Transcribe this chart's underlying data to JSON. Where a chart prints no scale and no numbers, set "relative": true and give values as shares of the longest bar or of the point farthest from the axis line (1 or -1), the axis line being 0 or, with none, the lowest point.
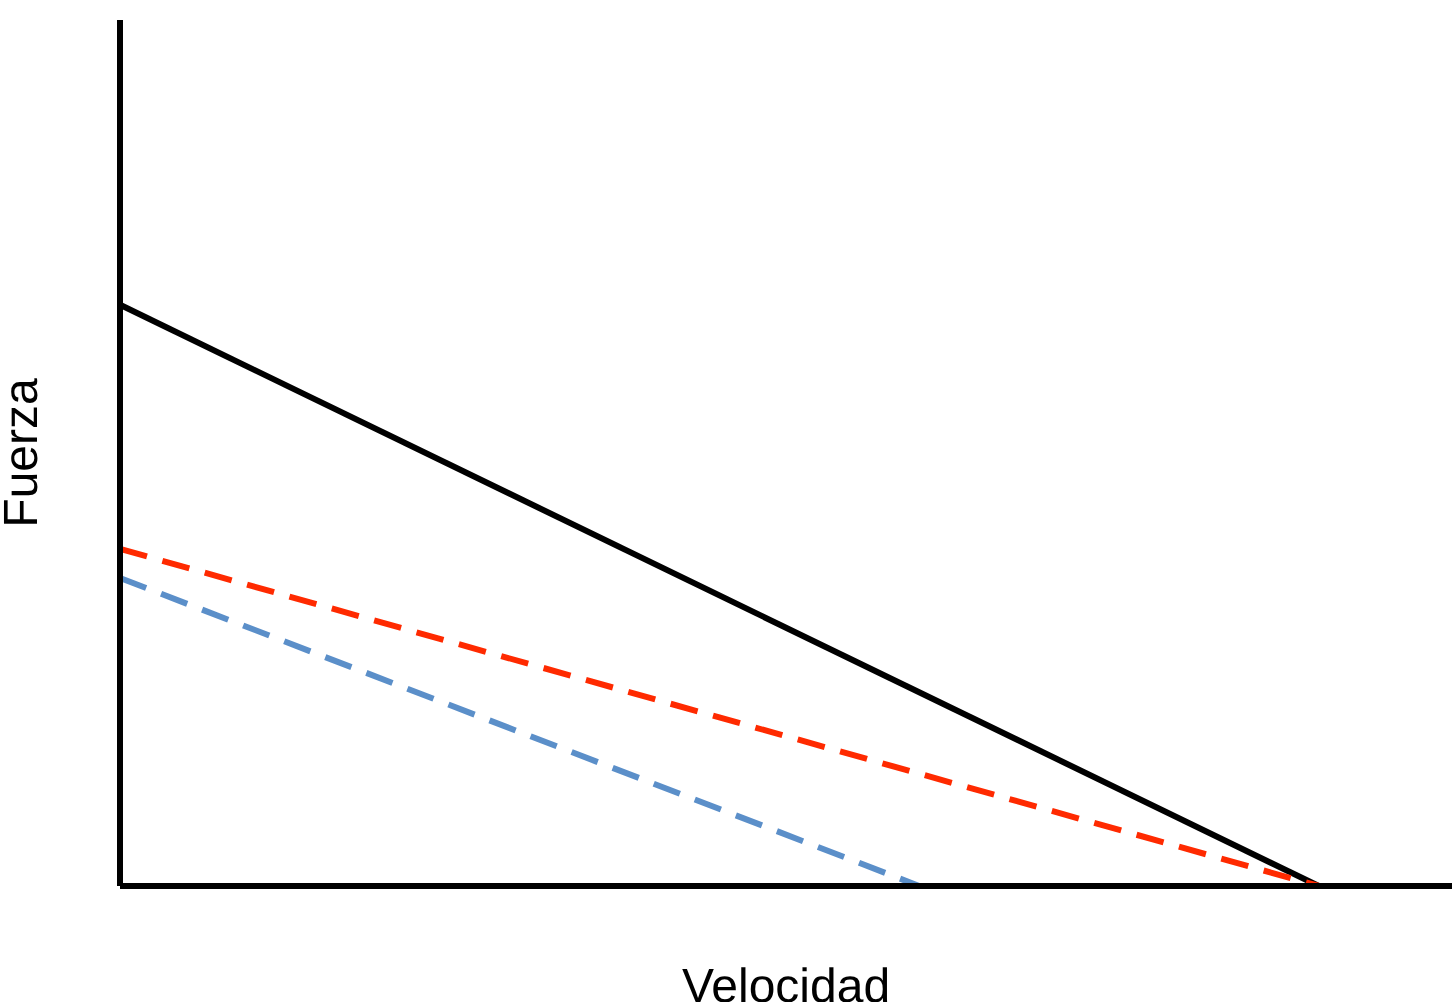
{
  "chart_data": {
    "type": "line",
    "xlabel": "Velocidad",
    "ylabel": "Fuerza",
    "relative": true,
    "grid": false,
    "legend": false,
    "marker": "none",
    "categories": [
      null,
      null,
      null,
      null,
      null,
      null,
      null,
      null,
      null,
      null,
      null
    ],
    "series": [
      {
        "color": "#000000",
        "line_style": "solid",
        "values": [
          1,
          null,
          null,
          null,
          null,
          null,
          null,
          null,
          null,
          0,
          null
        ]
      },
      {
        "color": "#ff2a00",
        "line_style": "dashed",
        "values": [
          0.58,
          null,
          null,
          null,
          null,
          null,
          null,
          null,
          null,
          0,
          null
        ]
      },
      {
        "color": "#5b8fc9",
        "line_style": "dashed",
        "values": [
          0.53,
          null,
          null,
          null,
          null,
          null,
          0,
          null,
          null,
          null,
          null
        ]
      }
    ]
  }
}
